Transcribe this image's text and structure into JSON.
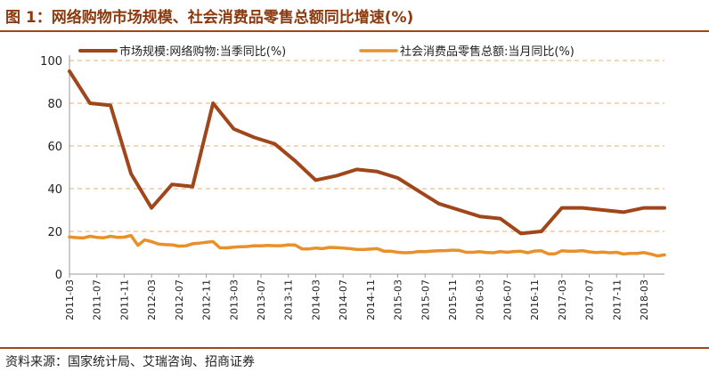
{
  "title": "图 1：网络购物市场规模、社会消费品零售总额同比增速(%)",
  "source": "资料来源：国家统计局、艾瑞咨询、招商证券",
  "chart_data": {
    "type": "line",
    "title": "图 1：网络购物市场规模、社会消费品零售总额同比增速(%)",
    "xlabel": "",
    "ylabel": "",
    "ylim": [
      0,
      100
    ],
    "yticks": [
      0,
      20,
      40,
      60,
      80,
      100
    ],
    "grid": "horizontal dashed",
    "legend_position": "top",
    "xtick_labels": [
      "2011-03",
      "2011-07",
      "2011-11",
      "2012-03",
      "2012-07",
      "2012-11",
      "2013-03",
      "2013-07",
      "2013-11",
      "2014-03",
      "2014-07",
      "2014-11",
      "2015-03",
      "2015-07",
      "2015-11",
      "2016-03",
      "2016-07",
      "2016-11",
      "2017-03",
      "2017-07",
      "2017-11",
      "2018-03"
    ],
    "series": [
      {
        "name": "市场规模:网络购物:当季同比(%)",
        "color": "#a0461b",
        "x": [
          "2011-03",
          "2011-06",
          "2011-09",
          "2011-12",
          "2012-03",
          "2012-06",
          "2012-09",
          "2012-12",
          "2013-03",
          "2013-06",
          "2013-09",
          "2013-12",
          "2014-03",
          "2014-06",
          "2014-09",
          "2014-12",
          "2015-03",
          "2015-06",
          "2015-09",
          "2015-12",
          "2016-03",
          "2016-06",
          "2016-09",
          "2016-12",
          "2017-03",
          "2017-06",
          "2017-09",
          "2017-12",
          "2018-03",
          "2018-06"
        ],
        "values": [
          95,
          80,
          79,
          47,
          31,
          42,
          41,
          80,
          68,
          64,
          61,
          53,
          44,
          46,
          49,
          48,
          45,
          39,
          33,
          30,
          27,
          26,
          19,
          20,
          31,
          31,
          30,
          29,
          31,
          31
        ]
      },
      {
        "name": "社会消费品零售总额:当月同比(%)",
        "color": "#e8902a",
        "x": [
          "2011-03",
          "2011-04",
          "2011-05",
          "2011-06",
          "2011-07",
          "2011-08",
          "2011-09",
          "2011-10",
          "2011-11",
          "2011-12",
          "2012-01",
          "2012-02",
          "2012-03",
          "2012-04",
          "2012-05",
          "2012-06",
          "2012-07",
          "2012-08",
          "2012-09",
          "2012-10",
          "2012-11",
          "2012-12",
          "2013-01",
          "2013-02",
          "2013-03",
          "2013-04",
          "2013-05",
          "2013-06",
          "2013-07",
          "2013-08",
          "2013-09",
          "2013-10",
          "2013-11",
          "2013-12",
          "2014-01",
          "2014-02",
          "2014-03",
          "2014-04",
          "2014-05",
          "2014-06",
          "2014-07",
          "2014-08",
          "2014-09",
          "2014-10",
          "2014-11",
          "2014-12",
          "2015-01",
          "2015-02",
          "2015-03",
          "2015-04",
          "2015-05",
          "2015-06",
          "2015-07",
          "2015-08",
          "2015-09",
          "2015-10",
          "2015-11",
          "2015-12",
          "2016-01",
          "2016-02",
          "2016-03",
          "2016-04",
          "2016-05",
          "2016-06",
          "2016-07",
          "2016-08",
          "2016-09",
          "2016-10",
          "2016-11",
          "2016-12",
          "2017-01",
          "2017-02",
          "2017-03",
          "2017-04",
          "2017-05",
          "2017-06",
          "2017-07",
          "2017-08",
          "2017-09",
          "2017-10",
          "2017-11",
          "2017-12",
          "2018-01",
          "2018-02",
          "2018-03",
          "2018-04",
          "2018-05",
          "2018-06"
        ],
        "values": [
          17.4,
          17.1,
          16.9,
          17.7,
          17.2,
          17.0,
          17.7,
          17.2,
          17.3,
          18.1,
          13.5,
          16.0,
          15.2,
          14.1,
          13.8,
          13.7,
          13.1,
          13.2,
          14.2,
          14.5,
          14.9,
          15.2,
          12.3,
          12.3,
          12.6,
          12.8,
          12.9,
          13.3,
          13.2,
          13.4,
          13.3,
          13.3,
          13.7,
          13.6,
          11.8,
          11.8,
          12.2,
          11.9,
          12.5,
          12.4,
          12.2,
          11.9,
          11.6,
          11.5,
          11.7,
          11.9,
          10.7,
          10.7,
          10.2,
          10.0,
          10.1,
          10.6,
          10.5,
          10.8,
          10.9,
          11.0,
          11.2,
          11.1,
          10.2,
          10.2,
          10.5,
          10.1,
          10.0,
          10.6,
          10.2,
          10.6,
          10.7,
          10.0,
          10.8,
          10.9,
          9.5,
          9.5,
          10.9,
          10.7,
          10.7,
          11.0,
          10.4,
          10.1,
          10.3,
          10.0,
          10.2,
          9.4,
          9.7,
          9.7,
          10.1,
          9.4,
          8.5,
          9.0
        ]
      }
    ]
  }
}
